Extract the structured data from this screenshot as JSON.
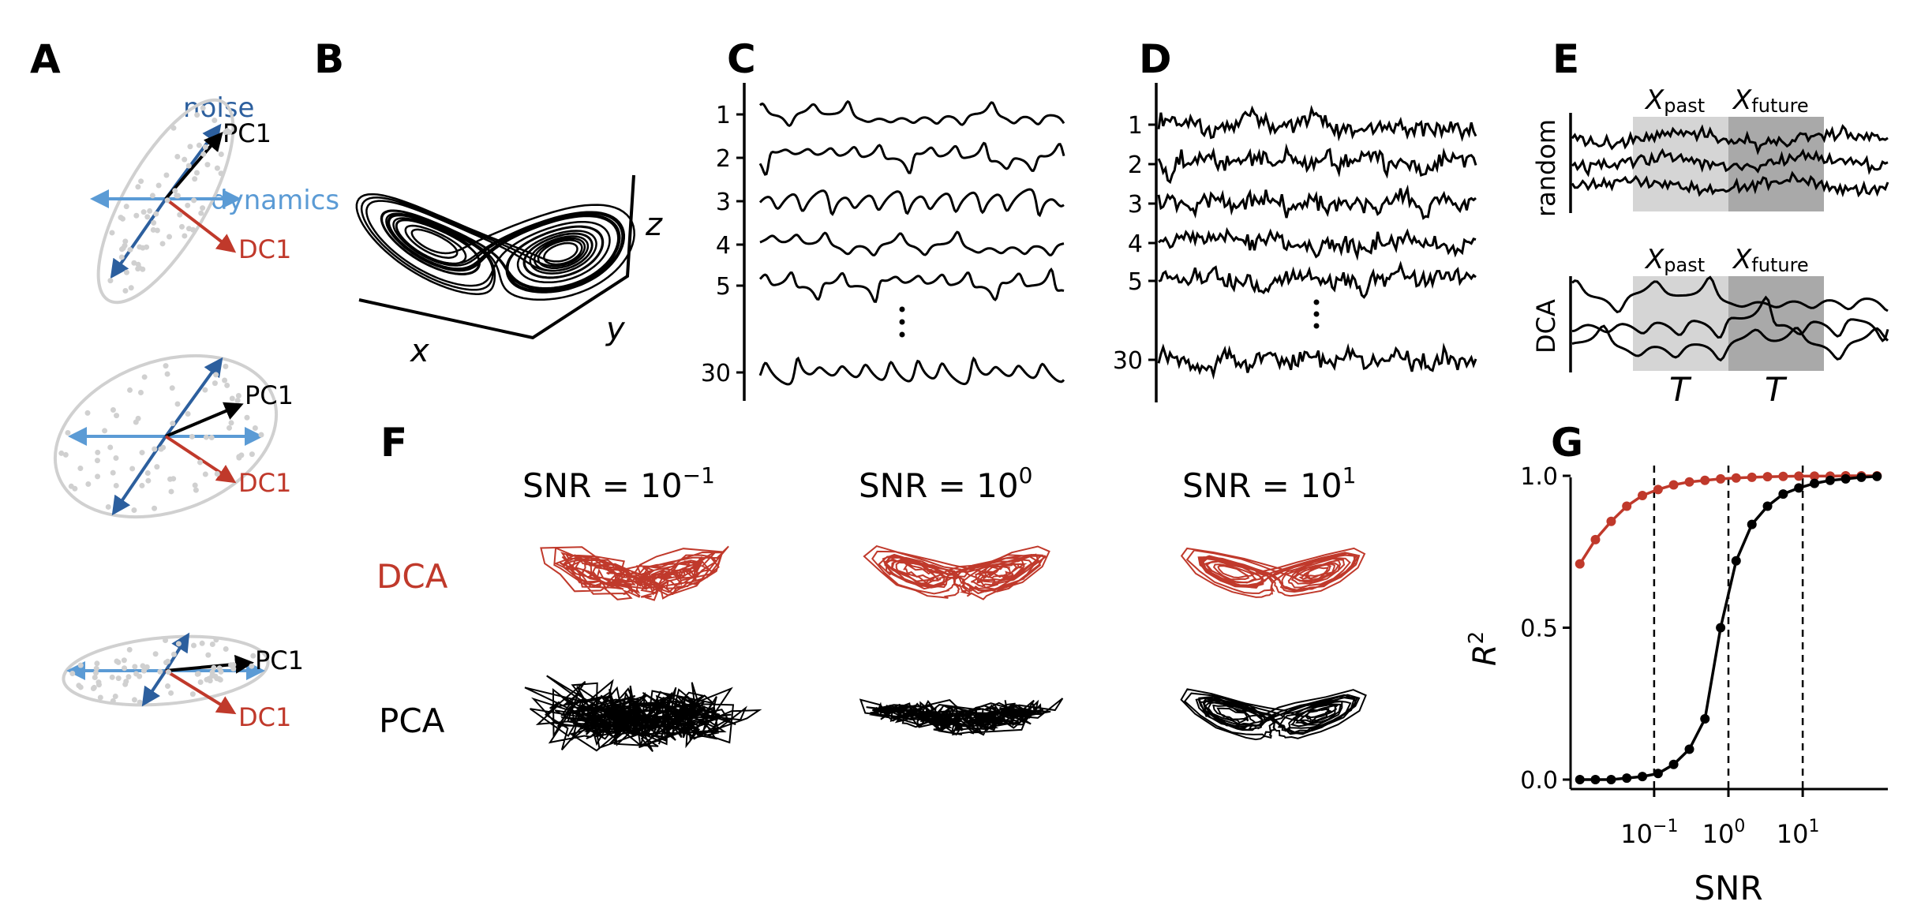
{
  "colors": {
    "red": "#c0392b",
    "dark_blue": "#2c5f9e",
    "light_blue": "#5b9bd5",
    "grey": "#d0d0d0",
    "black": "#000000"
  },
  "panels": {
    "A": {
      "letter": "A",
      "noise_label": "noise",
      "dynamics_label": "dynamics",
      "pc_label": "PC1",
      "dc_label": "DC1"
    },
    "B": {
      "letter": "B",
      "x_label": "x",
      "y_label": "y",
      "z_label": "z"
    },
    "C": {
      "letter": "C",
      "channel_labels": [
        "1",
        "2",
        "3",
        "4",
        "5",
        "30"
      ]
    },
    "D": {
      "letter": "D",
      "channel_labels": [
        "1",
        "2",
        "3",
        "4",
        "5",
        "30"
      ]
    },
    "E": {
      "letter": "E",
      "row_labels": [
        "random",
        "DCA"
      ],
      "x_main": "X",
      "sub_past": "past",
      "sub_future": "future",
      "window_label": "T"
    },
    "F": {
      "letter": "F",
      "row_labels": [
        "DCA",
        "PCA"
      ],
      "columns": [
        {
          "prefix": "SNR = 10",
          "exponent": "−1"
        },
        {
          "prefix": "SNR = 10",
          "exponent": "0"
        },
        {
          "prefix": "SNR = 10",
          "exponent": "1"
        }
      ]
    },
    "G": {
      "letter": "G"
    }
  },
  "chart_data": {
    "type": "line",
    "xlabel": "SNR",
    "ylabel": "R",
    "ylabel_superscript": "2",
    "xscale": "log",
    "ylim": [
      0,
      1
    ],
    "ytick_labels": [
      "0.0",
      "0.5",
      "1.0"
    ],
    "xtick_labels": [
      {
        "base": "10",
        "exp": "−1",
        "value": 0.1
      },
      {
        "base": "10",
        "exp": "0",
        "value": 1
      },
      {
        "base": "10",
        "exp": "1",
        "value": 10
      }
    ],
    "vlines_at": [
      0.1,
      1,
      10
    ],
    "x": [
      0.01,
      0.0162,
      0.0264,
      0.0428,
      0.0695,
      0.113,
      0.183,
      0.298,
      0.483,
      0.785,
      1.27,
      2.07,
      3.36,
      5.46,
      8.86,
      14.4,
      23.4,
      37.9,
      61.6,
      100
    ],
    "series": [
      {
        "color": "#c0392b",
        "values": [
          0.71,
          0.79,
          0.85,
          0.9,
          0.935,
          0.955,
          0.97,
          0.98,
          0.985,
          0.99,
          0.993,
          0.995,
          0.997,
          0.998,
          0.999,
          0.999,
          0.999,
          1.0,
          1.0,
          1.0
        ]
      },
      {
        "color": "#000000",
        "values": [
          0.0,
          0.0,
          0.0,
          0.005,
          0.01,
          0.02,
          0.05,
          0.1,
          0.2,
          0.5,
          0.72,
          0.84,
          0.9,
          0.94,
          0.96,
          0.975,
          0.985,
          0.99,
          0.995,
          0.998
        ]
      }
    ]
  }
}
